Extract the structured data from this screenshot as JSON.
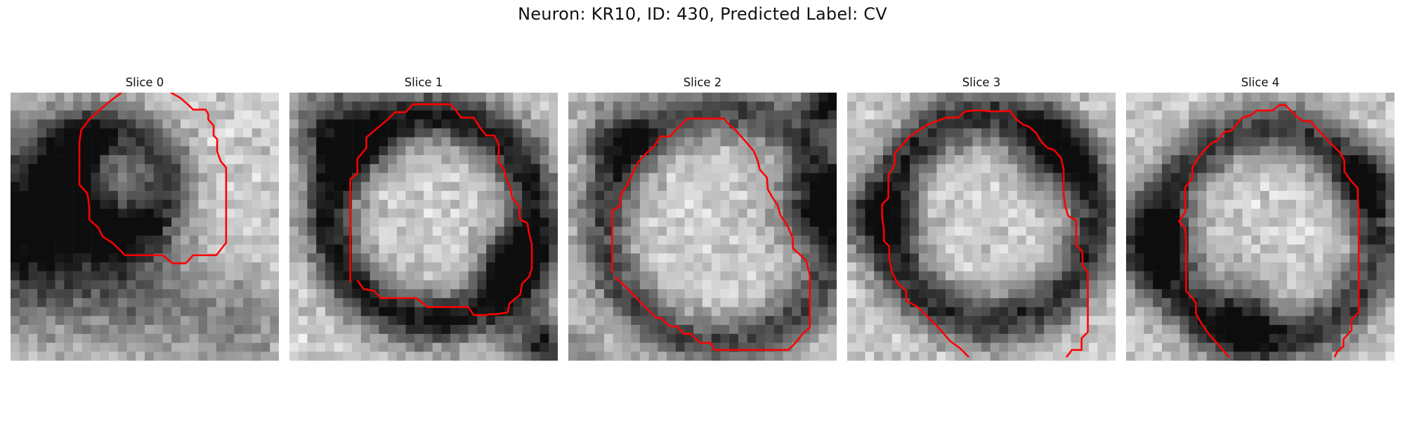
{
  "figure": {
    "title": "Neuron: KR10, ID: 430, Predicted Label: CV"
  },
  "panels": [
    {
      "title": "Slice 0"
    },
    {
      "title": "Slice 1"
    },
    {
      "title": "Slice 2"
    },
    {
      "title": "Slice 3"
    },
    {
      "title": "Slice 4"
    }
  ],
  "colors": {
    "contour": "#ff0000",
    "background": "#ffffff"
  }
}
